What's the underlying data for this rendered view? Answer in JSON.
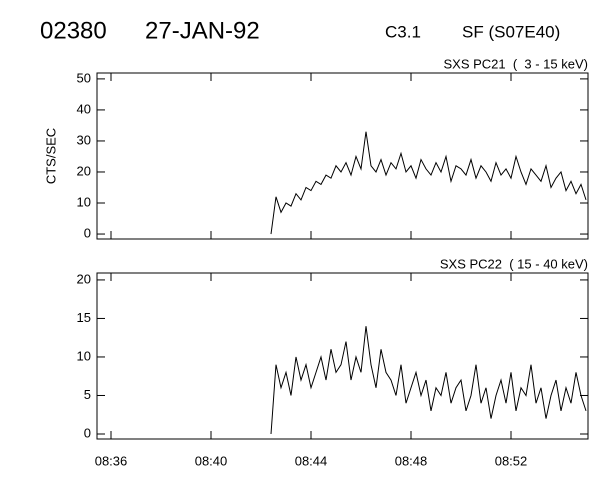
{
  "header": {
    "id": "02380",
    "date": "27-JAN-92",
    "class": "C3.1",
    "event": "SF (S07E40)"
  },
  "chart_data": [
    {
      "type": "line",
      "title": "SXS PC21  (  3 - 15 keV)",
      "ylabel": "CTS/SEC",
      "x": [
        522.4,
        522.6,
        522.8,
        523.0,
        523.2,
        523.4,
        523.6,
        523.8,
        524.0,
        524.2,
        524.4,
        524.6,
        524.8,
        525.0,
        525.2,
        525.4,
        525.6,
        525.8,
        526.0,
        526.2,
        526.4,
        526.6,
        526.8,
        527.0,
        527.2,
        527.4,
        527.6,
        527.8,
        528.0,
        528.2,
        528.4,
        528.6,
        528.8,
        529.0,
        529.2,
        529.4,
        529.6,
        529.8,
        530.0,
        530.2,
        530.4,
        530.6,
        530.8,
        531.0,
        531.2,
        531.4,
        531.6,
        531.8,
        532.0,
        532.2,
        532.4,
        532.6,
        532.8,
        533.0,
        533.2,
        533.4,
        533.6,
        533.8,
        534.0,
        534.2,
        534.4,
        534.6,
        534.8,
        535.0
      ],
      "series": [
        {
          "color": "#000000",
          "values": [
            0,
            12,
            7,
            10,
            9,
            13,
            11,
            15,
            14,
            17,
            16,
            19,
            18,
            22,
            20,
            23,
            19,
            25,
            21,
            33,
            22,
            20,
            24,
            19,
            23,
            21,
            26,
            20,
            22,
            18,
            24,
            21,
            19,
            23,
            20,
            25,
            17,
            22,
            21,
            19,
            24,
            18,
            22,
            20,
            17,
            23,
            19,
            21,
            18,
            25,
            20,
            16,
            21,
            19,
            17,
            22,
            15,
            18,
            20,
            14,
            17,
            13,
            16,
            11
          ]
        }
      ],
      "xlim": [
        515.44,
        535.08
      ],
      "xticks": [
        {
          "value": 516,
          "label": "08:36"
        },
        {
          "value": 520,
          "label": "08:40"
        },
        {
          "value": 524,
          "label": "08:44"
        },
        {
          "value": 528,
          "label": "08:48"
        },
        {
          "value": 532,
          "label": "08:52"
        }
      ],
      "ylim": [
        -1.6,
        51.9
      ],
      "yticks": [
        0,
        10,
        20,
        30,
        40,
        50
      ]
    },
    {
      "type": "line",
      "title": "SXS PC22  ( 15 - 40 keV)",
      "x": [
        522.4,
        522.6,
        522.8,
        523.0,
        523.2,
        523.4,
        523.6,
        523.8,
        524.0,
        524.2,
        524.4,
        524.6,
        524.8,
        525.0,
        525.2,
        525.4,
        525.6,
        525.8,
        526.0,
        526.2,
        526.4,
        526.6,
        526.8,
        527.0,
        527.2,
        527.4,
        527.6,
        527.8,
        528.0,
        528.2,
        528.4,
        528.6,
        528.8,
        529.0,
        529.2,
        529.4,
        529.6,
        529.8,
        530.0,
        530.2,
        530.4,
        530.6,
        530.8,
        531.0,
        531.2,
        531.4,
        531.6,
        531.8,
        532.0,
        532.2,
        532.4,
        532.6,
        532.8,
        533.0,
        533.2,
        533.4,
        533.6,
        533.8,
        534.0,
        534.2,
        534.4,
        534.6,
        534.8,
        535.0
      ],
      "series": [
        {
          "color": "#000000",
          "values": [
            0,
            9,
            6,
            8,
            5,
            10,
            7,
            9,
            6,
            8,
            10,
            7,
            11,
            8,
            9,
            12,
            7,
            10,
            8,
            14,
            9,
            6,
            11,
            8,
            7,
            5,
            9,
            4,
            6,
            8,
            5,
            7,
            3,
            6,
            5,
            8,
            4,
            6,
            7,
            3,
            5,
            9,
            4,
            6,
            2,
            5,
            7,
            4,
            8,
            3,
            6,
            5,
            9,
            4,
            6,
            2,
            5,
            7,
            3,
            6,
            4,
            8,
            5,
            3
          ]
        }
      ],
      "xlim": [
        515.44,
        535.08
      ],
      "xticks": [
        {
          "value": 516,
          "label": "08:36"
        },
        {
          "value": 520,
          "label": "08:40"
        },
        {
          "value": 524,
          "label": "08:44"
        },
        {
          "value": 528,
          "label": "08:48"
        },
        {
          "value": 532,
          "label": "08:52"
        }
      ],
      "ylim": [
        -0.65,
        20.9
      ],
      "yticks": [
        0,
        5,
        10,
        15,
        20
      ],
      "show_xtick_labels": true
    }
  ]
}
